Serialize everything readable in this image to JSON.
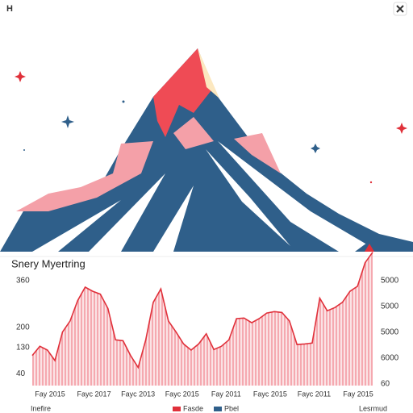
{
  "header": {
    "title": "H"
  },
  "chart_data": {
    "type": "area",
    "title": "Snery Myertring",
    "values": [
      103,
      135,
      122,
      86,
      184,
      222,
      292,
      338,
      324,
      314,
      265,
      157,
      154,
      103,
      62,
      157,
      286,
      332,
      222,
      184,
      143,
      122,
      143,
      178,
      124,
      135,
      157,
      230,
      232,
      216,
      230,
      249,
      254,
      251,
      222,
      141,
      143,
      146,
      300,
      257,
      268,
      286,
      324,
      341,
      422,
      458
    ],
    "color": "#e0303a",
    "fill_color": "#f5a9b0",
    "ylim": [
      0,
      460
    ],
    "yticks": [
      360,
      200,
      130,
      40
    ],
    "right_axis_labels": [
      "5000",
      "5000",
      "5000",
      "6000",
      "60"
    ],
    "xtick_labels": [
      "Fay 2015",
      "Fayc 2017",
      "Fayc 2013",
      "Fayc 2015",
      "Fay 2011",
      "Fayc 2015",
      "Fayc 2011",
      "Fay 2015"
    ],
    "legend": [
      {
        "name": "Fasde",
        "color": "#e0303a"
      },
      {
        "name": "Pbel",
        "color": "#2f5f8a"
      }
    ],
    "footer_left": "Inefire",
    "footer_right": "Lesrmud"
  }
}
